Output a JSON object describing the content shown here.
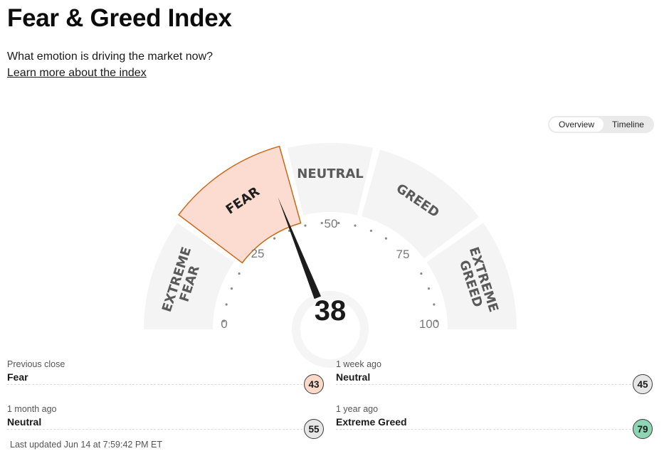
{
  "header": {
    "title": "Fear & Greed Index",
    "subtitle": "What emotion is driving the market now?",
    "learn_more": "Learn more about the index"
  },
  "view_toggle": {
    "options": [
      "Overview",
      "Timeline"
    ],
    "selected": "Overview"
  },
  "gauge": {
    "score": "38",
    "score_value": 38,
    "active_segment": "FEAR",
    "segments": [
      {
        "line1": "EXTREME",
        "line2": "FEAR"
      },
      {
        "line1": "FEAR",
        "line2": ""
      },
      {
        "line1": "NEUTRAL",
        "line2": ""
      },
      {
        "line1": "GREED",
        "line2": ""
      },
      {
        "line1": "EXTREME",
        "line2": "GREED"
      }
    ],
    "scale_labels": [
      "0",
      "25",
      "50",
      "75",
      "100"
    ],
    "colors": {
      "segment_bg": "#f4f4f4",
      "active_fill": "#fcdcd0",
      "active_border": "#c8691c",
      "needle": "#1c1c1c"
    }
  },
  "stats": [
    {
      "label": "Previous close",
      "value": "Fear",
      "score": "43",
      "badge_color": "#fbd9c8"
    },
    {
      "label": "1 week ago",
      "value": "Neutral",
      "score": "45",
      "badge_color": "#e6e6e6"
    },
    {
      "label": "1 month ago",
      "value": "Neutral",
      "score": "55",
      "badge_color": "#e6e6e6"
    },
    {
      "label": "1 year ago",
      "value": "Extreme Greed",
      "score": "79",
      "badge_color": "#8dd5b4"
    }
  ],
  "footer": {
    "last_updated": "Last updated Jun 14 at 7:59:42 PM ET"
  }
}
